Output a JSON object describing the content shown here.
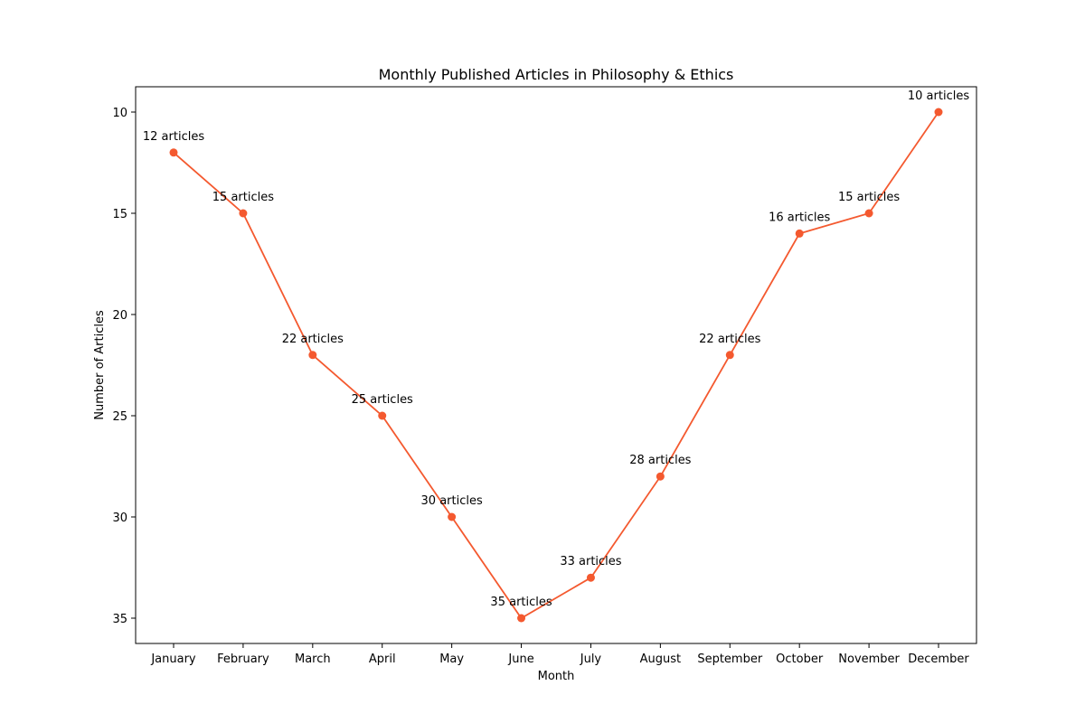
{
  "chart_data": {
    "type": "line",
    "title": "Monthly Published Articles in Philosophy & Ethics",
    "xlabel": "Month",
    "ylabel": "Number of Articles",
    "y_inverted": true,
    "ylim": [
      36.25,
      8.75
    ],
    "yticks": [
      10,
      15,
      20,
      25,
      30,
      35
    ],
    "grid": false,
    "categories": [
      "January",
      "February",
      "March",
      "April",
      "May",
      "June",
      "July",
      "August",
      "September",
      "October",
      "November",
      "December"
    ],
    "series": [
      {
        "name": "Articles",
        "color": "#f4592f",
        "values": [
          12,
          15,
          22,
          25,
          30,
          35,
          33,
          28,
          22,
          16,
          15,
          10
        ],
        "labels": [
          "12 articles",
          "15 articles",
          "22 articles",
          "25 articles",
          "30 articles",
          "35 articles",
          "33 articles",
          "28 articles",
          "22 articles",
          "16 articles",
          "15 articles",
          "10 articles"
        ]
      }
    ]
  }
}
